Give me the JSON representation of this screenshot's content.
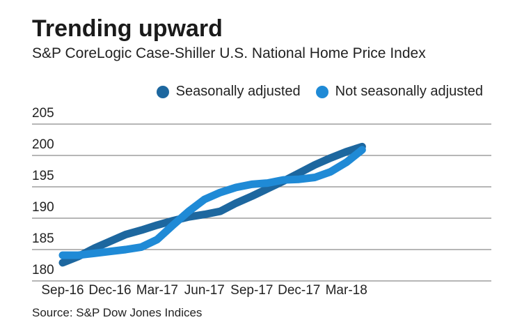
{
  "chart_data": {
    "type": "line",
    "title": "Trending upward",
    "subtitle": "S&P CoreLogic Case-Shiller U.S. National Home Price Index",
    "source": "Source: S&P Dow Jones Indices",
    "xlabel": "",
    "ylabel": "",
    "ylim": [
      180,
      205
    ],
    "yticks": [
      180,
      185,
      190,
      195,
      200,
      205
    ],
    "x": [
      "Sep-16",
      "Oct-16",
      "Nov-16",
      "Dec-16",
      "Jan-17",
      "Feb-17",
      "Mar-17",
      "Apr-17",
      "May-17",
      "Jun-17",
      "Jul-17",
      "Aug-17",
      "Sep-17",
      "Oct-17",
      "Nov-17",
      "Dec-17",
      "Jan-18",
      "Feb-18",
      "Mar-18",
      "Apr-18"
    ],
    "xtick_labels": [
      "Sep-16",
      "Dec-16",
      "Mar-17",
      "Jun-17",
      "Sep-17",
      "Dec-17",
      "Mar-18"
    ],
    "grid": true,
    "legend_position": "top-right",
    "series": [
      {
        "name": "Seasonally adjusted",
        "color": "#1d679f",
        "values": [
          182.9,
          183.9,
          185.2,
          186.3,
          187.4,
          188.1,
          188.9,
          189.6,
          190.2,
          190.6,
          191.1,
          192.4,
          193.5,
          194.7,
          195.9,
          197.2,
          198.5,
          199.6,
          200.6,
          201.4
        ]
      },
      {
        "name": "Not seasonally adjusted",
        "color": "#1f8ad6",
        "values": [
          184.1,
          184.1,
          184.4,
          184.7,
          185.0,
          185.4,
          186.6,
          188.9,
          191.1,
          193.0,
          194.1,
          194.9,
          195.4,
          195.6,
          196.1,
          196.2,
          196.5,
          197.4,
          198.9,
          200.9
        ]
      }
    ]
  }
}
